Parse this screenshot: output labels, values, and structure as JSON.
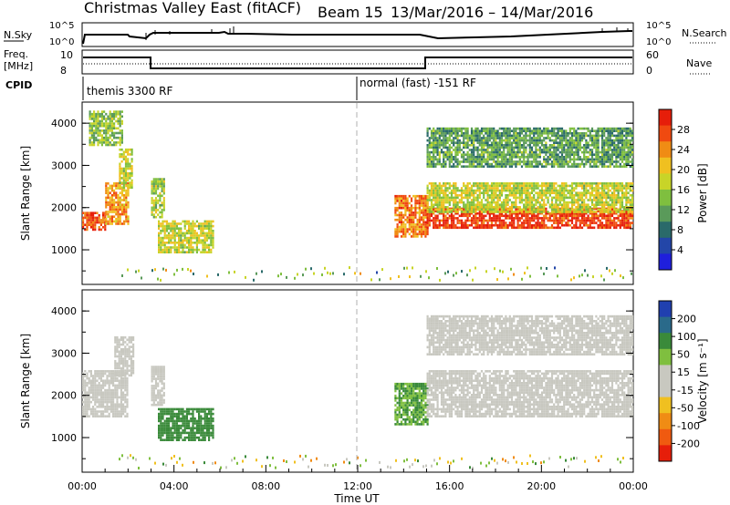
{
  "title": {
    "station": "Christmas Valley East (fitACF)",
    "beam": "Beam 15",
    "dates": "13/Mar/2016 – 14/Mar/2016"
  },
  "header_panels": {
    "nsky_label": "N.Sky",
    "nsearch_label": "N.Search",
    "n_ticks": [
      "10^5",
      "10^0"
    ],
    "freq_label_1": "Freq.",
    "freq_label_2": "[MHz]",
    "freq_ticks": [
      "10",
      "8"
    ],
    "nave_label": "Nave",
    "nave_ticks": [
      "60",
      "0"
    ],
    "cpid_label": "CPID",
    "cpid_segments": [
      {
        "label": "themis 3300 RF",
        "start_hour": 0
      },
      {
        "label": "normal (fast) -151 RF",
        "start_hour": 12
      }
    ]
  },
  "colors": {
    "power_scale": [
      "#1f1fdc",
      "#2346a8",
      "#2a6a6a",
      "#5a9a5a",
      "#7fbf3f",
      "#c8d428",
      "#f0c020",
      "#f08c14",
      "#f04a10",
      "#e61e0a"
    ],
    "velocity_scale": [
      "#e61e0a",
      "#f05a10",
      "#f08c14",
      "#f0c020",
      "#c8c8c0",
      "#c8c8c0",
      "#7fbf3f",
      "#3a8a3a",
      "#2a6a8a",
      "#2040b0"
    ],
    "ground_scatter": "#c8c8c0"
  },
  "chart_data": [
    {
      "type": "heatmap",
      "name": "power",
      "ylabel": "Slant Range [km]",
      "xlabel": "",
      "colorbar_label": "Power [dB]",
      "colorbar_ticks": [
        "28",
        "24",
        "20",
        "16",
        "12",
        "8",
        "4"
      ],
      "yticks": [
        "4000",
        "3000",
        "2000",
        "1000"
      ],
      "ylim": [
        180,
        4500
      ],
      "xlim": [
        0,
        24
      ],
      "regions": [
        {
          "x": [
            0.0,
            1.0
          ],
          "y": [
            1500,
            1900
          ],
          "level": 0.9
        },
        {
          "x": [
            1.0,
            2.0
          ],
          "y": [
            1600,
            2600
          ],
          "level": 0.75
        },
        {
          "x": [
            1.6,
            2.2
          ],
          "y": [
            2500,
            3400
          ],
          "level": 0.55
        },
        {
          "x": [
            0.3,
            1.7
          ],
          "y": [
            3500,
            4300
          ],
          "level": 0.45
        },
        {
          "x": [
            3.0,
            3.6
          ],
          "y": [
            1800,
            2700
          ],
          "level": 0.5
        },
        {
          "x": [
            3.3,
            5.7
          ],
          "y": [
            950,
            1700
          ],
          "level": 0.55
        },
        {
          "x": [
            13.6,
            15.0
          ],
          "y": [
            1300,
            2300
          ],
          "level": 0.8
        },
        {
          "x": [
            15.0,
            24.0
          ],
          "y": [
            1500,
            2000
          ],
          "level": 0.95
        },
        {
          "x": [
            15.0,
            24.0
          ],
          "y": [
            1900,
            2600
          ],
          "level": 0.55
        },
        {
          "x": [
            15.0,
            24.0
          ],
          "y": [
            3000,
            3900
          ],
          "level": 0.35
        }
      ]
    },
    {
      "type": "heatmap",
      "name": "velocity",
      "ylabel": "Slant Range [km]",
      "xlabel": "Time UT",
      "colorbar_label": "Velocity [m s⁻¹]",
      "colorbar_ticks": [
        "200",
        "100",
        "50",
        "15",
        "-15",
        "-50",
        "-100",
        "-200"
      ],
      "yticks": [
        "4000",
        "3000",
        "2000",
        "1000"
      ],
      "xticks": [
        "00:00",
        "04:00",
        "08:00",
        "12:00",
        "16:00",
        "20:00",
        "00:00"
      ],
      "ylim": [
        180,
        4500
      ],
      "xlim": [
        0,
        24
      ],
      "regions": [
        {
          "x": [
            0.0,
            2.0
          ],
          "y": [
            1500,
            2600
          ],
          "value": 0
        },
        {
          "x": [
            1.4,
            2.2
          ],
          "y": [
            2500,
            3400
          ],
          "value": 0
        },
        {
          "x": [
            3.0,
            3.6
          ],
          "y": [
            1800,
            2700
          ],
          "value": 0
        },
        {
          "x": [
            3.3,
            5.7
          ],
          "y": [
            950,
            1700
          ],
          "value": 60
        },
        {
          "x": [
            13.6,
            15.0
          ],
          "y": [
            1300,
            2300
          ],
          "value": 50
        },
        {
          "x": [
            15.0,
            24.0
          ],
          "y": [
            1500,
            2600
          ],
          "value": 0
        },
        {
          "x": [
            15.0,
            24.0
          ],
          "y": [
            3000,
            3900
          ],
          "value": 0
        }
      ]
    }
  ]
}
